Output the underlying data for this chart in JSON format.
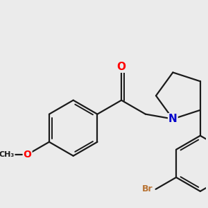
{
  "background_color": "#ebebeb",
  "bond_color": "#1a1a1a",
  "bond_width": 1.6,
  "atom_colors": {
    "O": "#ff0000",
    "N": "#0000cc",
    "Br": "#b87333",
    "C": "#1a1a1a"
  }
}
